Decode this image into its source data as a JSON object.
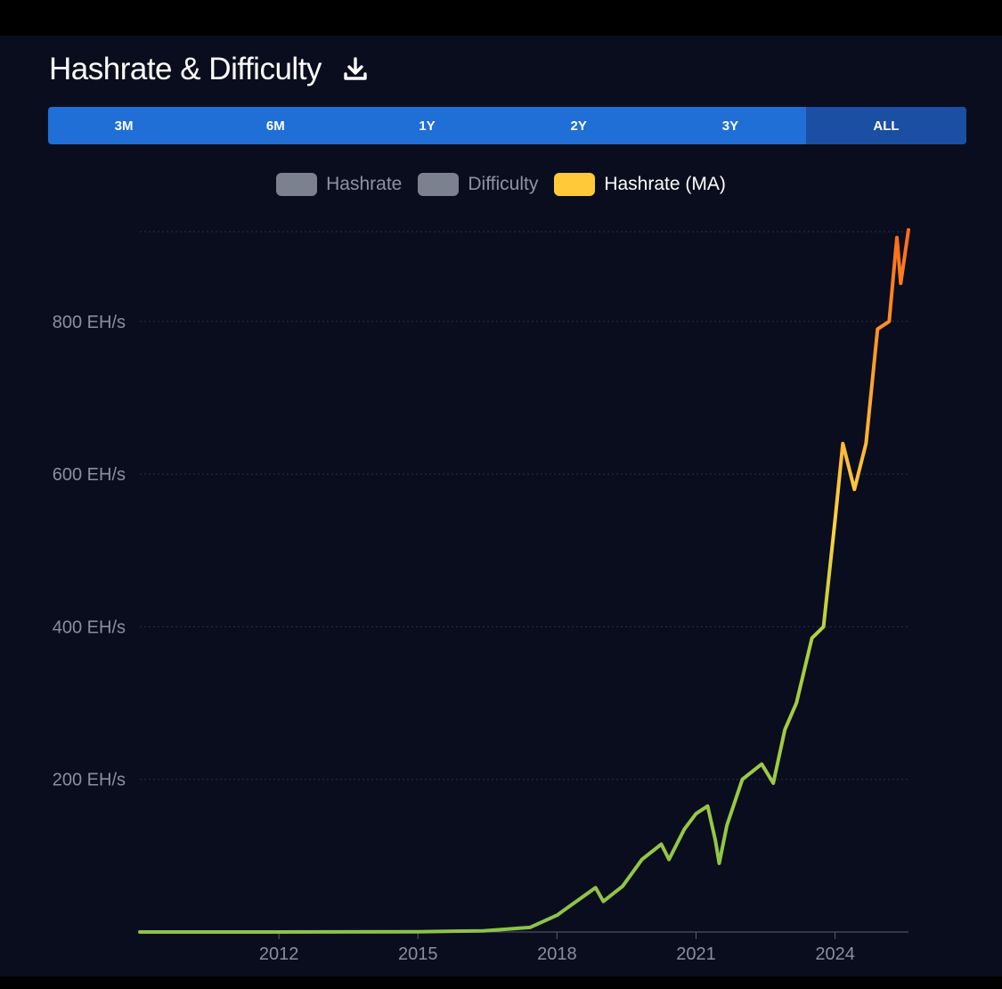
{
  "header": {
    "title": "Hashrate & Difficulty"
  },
  "range_selector": {
    "options": [
      "3M",
      "6M",
      "1Y",
      "2Y",
      "3Y",
      "ALL"
    ],
    "active": "ALL"
  },
  "legend": [
    {
      "label": "Hashrate",
      "color": "#7c8190",
      "active": false
    },
    {
      "label": "Difficulty",
      "color": "#7c8190",
      "active": false
    },
    {
      "label": "Hashrate (MA)",
      "color": "#ffc93a",
      "active": true
    }
  ],
  "chart_data": {
    "type": "line",
    "title": "",
    "xlabel": "",
    "ylabel": "",
    "x_ticks": [
      "2012",
      "2015",
      "2018",
      "2021",
      "2024"
    ],
    "y_ticks": [
      "200 EH/s",
      "400 EH/s",
      "600 EH/s",
      "800 EH/s"
    ],
    "y_unit": "EH/s",
    "ylim": [
      0,
      920
    ],
    "xlim": [
      "2009-01",
      "2025-08"
    ],
    "grid": true,
    "legend_position": "top-center",
    "colors": {
      "low": "#8bc34a",
      "mid": "#ffd23f",
      "high": "#ff6a1a"
    },
    "series": [
      {
        "name": "Hashrate (MA)",
        "x": [
          "2009-01",
          "2012-01",
          "2015-01",
          "2016-06",
          "2017-06",
          "2018-01",
          "2018-06",
          "2018-11",
          "2019-01",
          "2019-06",
          "2019-11",
          "2020-04",
          "2020-06",
          "2020-10",
          "2021-01",
          "2021-04",
          "2021-06",
          "2021-07",
          "2021-09",
          "2022-01",
          "2022-06",
          "2022-09",
          "2022-12",
          "2023-03",
          "2023-07",
          "2023-10",
          "2024-01",
          "2024-03",
          "2024-06",
          "2024-09",
          "2024-12",
          "2025-03",
          "2025-05",
          "2025-06",
          "2025-08"
        ],
        "values": [
          0,
          0,
          0.3,
          1.5,
          6,
          22,
          40,
          58,
          40,
          60,
          95,
          115,
          95,
          135,
          155,
          165,
          120,
          90,
          140,
          200,
          220,
          195,
          265,
          300,
          385,
          400,
          540,
          640,
          580,
          640,
          790,
          800,
          910,
          850,
          920
        ]
      }
    ]
  }
}
